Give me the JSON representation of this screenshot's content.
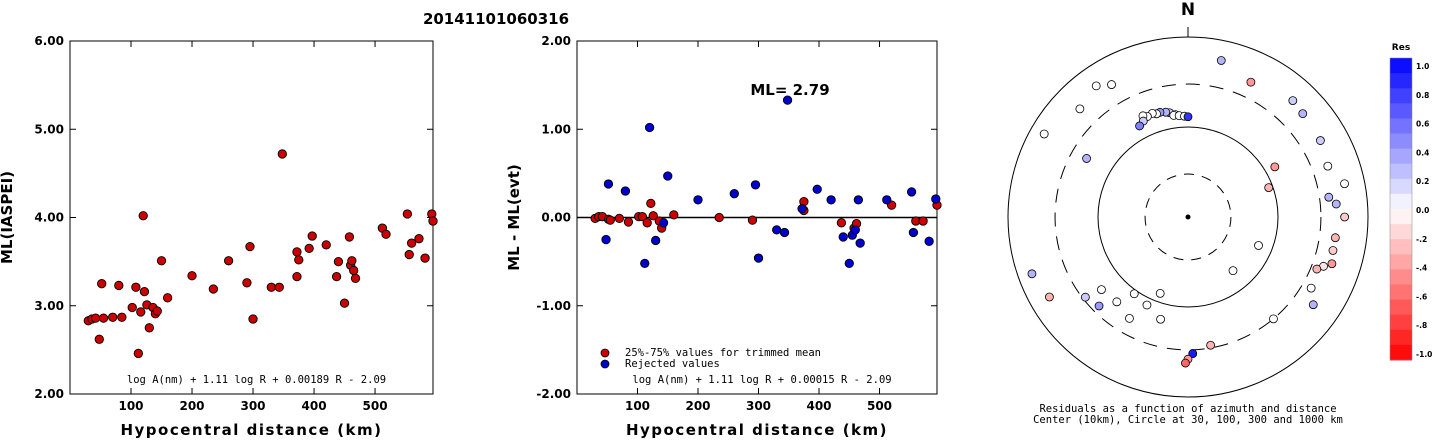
{
  "event_id": "20141101060316",
  "chart_data": [
    {
      "type": "scatter",
      "xlabel": "Hypocentral distance (km)",
      "ylabel": "ML(IASPEI)",
      "xlim": [
        0,
        595
      ],
      "ylim": [
        2.0,
        6.0
      ],
      "xticks": [
        100,
        200,
        300,
        400,
        500
      ],
      "yticks": [
        2.0,
        3.0,
        4.0,
        5.0,
        6.0
      ],
      "ytick_labels": [
        "2.00",
        "3.00",
        "4.00",
        "5.00",
        "6.00"
      ],
      "annotation": "log A(nm) + 1.11 log R + 0.00189 R - 2.09",
      "point_color": "#cc0000",
      "points": [
        [
          30,
          2.83
        ],
        [
          36,
          2.85
        ],
        [
          42,
          2.86
        ],
        [
          48,
          2.62
        ],
        [
          52,
          3.25
        ],
        [
          55,
          2.86
        ],
        [
          70,
          2.87
        ],
        [
          80,
          3.23
        ],
        [
          85,
          2.87
        ],
        [
          102,
          2.98
        ],
        [
          108,
          3.21
        ],
        [
          112,
          2.46
        ],
        [
          116,
          2.93
        ],
        [
          120,
          4.02
        ],
        [
          122,
          3.16
        ],
        [
          126,
          3.01
        ],
        [
          130,
          2.75
        ],
        [
          136,
          2.98
        ],
        [
          140,
          2.91
        ],
        [
          143,
          2.94
        ],
        [
          150,
          3.51
        ],
        [
          160,
          3.09
        ],
        [
          200,
          3.34
        ],
        [
          235,
          3.19
        ],
        [
          260,
          3.51
        ],
        [
          290,
          3.26
        ],
        [
          295,
          3.67
        ],
        [
          300,
          2.85
        ],
        [
          330,
          3.21
        ],
        [
          343,
          3.21
        ],
        [
          348,
          4.72
        ],
        [
          372,
          3.33
        ],
        [
          372,
          3.61
        ],
        [
          375,
          3.52
        ],
        [
          392,
          3.65
        ],
        [
          397,
          3.79
        ],
        [
          420,
          3.69
        ],
        [
          437,
          3.33
        ],
        [
          440,
          3.5
        ],
        [
          450,
          3.03
        ],
        [
          458,
          3.78
        ],
        [
          460,
          3.46
        ],
        [
          462,
          3.51
        ],
        [
          465,
          3.4
        ],
        [
          468,
          3.31
        ],
        [
          512,
          3.88
        ],
        [
          518,
          3.81
        ],
        [
          553,
          4.04
        ],
        [
          556,
          3.58
        ],
        [
          560,
          3.71
        ],
        [
          572,
          3.76
        ],
        [
          582,
          3.54
        ],
        [
          593,
          4.04
        ],
        [
          595,
          3.96
        ]
      ]
    },
    {
      "type": "scatter",
      "xlabel": "Hypocentral distance (km)",
      "ylabel": "ML - ML(evt)",
      "xlim": [
        0,
        595
      ],
      "ylim": [
        -2.0,
        2.0
      ],
      "xticks": [
        100,
        200,
        300,
        400,
        500
      ],
      "yticks": [
        -2.0,
        -1.0,
        0.0,
        1.0,
        2.0
      ],
      "ytick_labels": [
        "-2.00",
        "-1.00",
        "0.00",
        "1.00",
        "2.00"
      ],
      "ml_label": "ML= 2.79",
      "annotation": "log A(nm) + 1.11 log R + 0.00015 R - 2.09",
      "legend": [
        {
          "label": "25%-75% values for trimmed mean",
          "color": "#cc0000"
        },
        {
          "label": "Rejected values",
          "color": "#0000cc"
        }
      ],
      "series": [
        {
          "color": "#cc0000",
          "points": [
            [
              30,
              -0.01
            ],
            [
              36,
              0.01
            ],
            [
              42,
              0.01
            ],
            [
              52,
              -0.02
            ],
            [
              55,
              -0.03
            ],
            [
              70,
              -0.01
            ],
            [
              85,
              -0.05
            ],
            [
              102,
              0.01
            ],
            [
              108,
              0.01
            ],
            [
              116,
              -0.06
            ],
            [
              122,
              0.16
            ],
            [
              126,
              0.02
            ],
            [
              136,
              -0.04
            ],
            [
              140,
              -0.12
            ],
            [
              160,
              0.03
            ],
            [
              235,
              0.0
            ],
            [
              290,
              -0.03
            ],
            [
              375,
              0.18
            ],
            [
              375,
              0.08
            ],
            [
              437,
              -0.06
            ],
            [
              458,
              -0.12
            ],
            [
              462,
              -0.07
            ],
            [
              520,
              0.14
            ],
            [
              560,
              -0.04
            ],
            [
              572,
              -0.04
            ],
            [
              595,
              0.14
            ]
          ]
        },
        {
          "color": "#0000cc",
          "points": [
            [
              48,
              -0.25
            ],
            [
              52,
              0.38
            ],
            [
              80,
              0.3
            ],
            [
              112,
              -0.52
            ],
            [
              120,
              1.02
            ],
            [
              130,
              -0.26
            ],
            [
              143,
              -0.06
            ],
            [
              150,
              0.47
            ],
            [
              200,
              0.2
            ],
            [
              260,
              0.27
            ],
            [
              295,
              0.37
            ],
            [
              300,
              -0.46
            ],
            [
              330,
              -0.14
            ],
            [
              343,
              -0.17
            ],
            [
              348,
              1.33
            ],
            [
              372,
              0.1
            ],
            [
              397,
              0.32
            ],
            [
              420,
              0.2
            ],
            [
              440,
              -0.22
            ],
            [
              450,
              -0.52
            ],
            [
              455,
              -0.2
            ],
            [
              460,
              -0.14
            ],
            [
              465,
              0.2
            ],
            [
              468,
              -0.29
            ],
            [
              512,
              0.2
            ],
            [
              553,
              0.29
            ],
            [
              556,
              -0.17
            ],
            [
              582,
              -0.27
            ],
            [
              593,
              0.21
            ]
          ]
        }
      ]
    },
    {
      "type": "polar-scatter",
      "north_label": "N",
      "caption_line1": "Residuals as a function of azimuth and distance",
      "caption_line2": "Center (10km), Circle at 30, 100, 300 and 1000 km",
      "ring_distances_km": [
        30,
        100,
        300,
        1000
      ],
      "colorbar": {
        "title": "Res",
        "range": [
          -1.0,
          1.0
        ],
        "tick_labels": [
          "1.0",
          "0.8",
          "0.6",
          "0.4",
          "0.2",
          "0.0",
          "-.2",
          "-.4",
          "-.6",
          "-.8",
          "-1.0"
        ],
        "positive_color": "#0000ff",
        "negative_color": "#ff0000"
      },
      "points": [
        {
          "az": 353,
          "dist": 140,
          "res": 0.0
        },
        {
          "az": 350,
          "dist": 150,
          "res": 0.2
        },
        {
          "az": 348,
          "dist": 155,
          "res": 0.3
        },
        {
          "az": 345,
          "dist": 160,
          "res": 0.4
        },
        {
          "az": 343,
          "dist": 158,
          "res": 0.0
        },
        {
          "az": 341,
          "dist": 165,
          "res": 0.0
        },
        {
          "az": 338,
          "dist": 160,
          "res": 0.0
        },
        {
          "az": 336,
          "dist": 170,
          "res": 0.0
        },
        {
          "az": 335,
          "dist": 150,
          "res": 0.2
        },
        {
          "az": 352,
          "dist": 138,
          "res": 0.0
        },
        {
          "az": 355,
          "dist": 135,
          "res": 0.0
        },
        {
          "az": 358,
          "dist": 132,
          "res": 0.0
        },
        {
          "az": 0,
          "dist": 130,
          "res": 0.8
        },
        {
          "az": 332,
          "dist": 140,
          "res": 0.5
        },
        {
          "az": 12,
          "dist": 600,
          "res": 0.3
        },
        {
          "az": 25,
          "dist": 450,
          "res": -0.4
        },
        {
          "az": 42,
          "dist": 550,
          "res": 0.2
        },
        {
          "az": 48,
          "dist": 520,
          "res": 0.3
        },
        {
          "az": 60,
          "dist": 500,
          "res": 0.2
        },
        {
          "az": 70,
          "dist": 450,
          "res": 0.0
        },
        {
          "az": 78,
          "dist": 600,
          "res": 0.0
        },
        {
          "az": 82,
          "dist": 380,
          "res": 0.3
        },
        {
          "az": 85,
          "dist": 450,
          "res": 0.3
        },
        {
          "az": 90,
          "dist": 550,
          "res": -0.2
        },
        {
          "az": 98,
          "dist": 450,
          "res": -0.3
        },
        {
          "az": 103,
          "dist": 450,
          "res": -0.2
        },
        {
          "az": 108,
          "dist": 480,
          "res": -0.4
        },
        {
          "az": 110,
          "dist": 400,
          "res": -0.1
        },
        {
          "az": 112,
          "dist": 350,
          "res": -0.3
        },
        {
          "az": 120,
          "dist": 380,
          "res": 0.0
        },
        {
          "az": 125,
          "dist": 500,
          "res": 0.3
        },
        {
          "az": 140,
          "dist": 300,
          "res": 0.0
        },
        {
          "az": 170,
          "dist": 280,
          "res": -0.3
        },
        {
          "az": 178,
          "dist": 330,
          "res": 0.9
        },
        {
          "az": 180,
          "dist": 380,
          "res": -0.4
        },
        {
          "az": 181,
          "dist": 420,
          "res": -0.6
        },
        {
          "az": 200,
          "dist": 80,
          "res": 0.0
        },
        {
          "az": 205,
          "dist": 120,
          "res": 0.0
        },
        {
          "az": 195,
          "dist": 150,
          "res": 0.0
        },
        {
          "az": 215,
          "dist": 110,
          "res": 0.0
        },
        {
          "az": 220,
          "dist": 170,
          "res": 0.0
        },
        {
          "az": 210,
          "dist": 200,
          "res": 0.0
        },
        {
          "az": 230,
          "dist": 180,
          "res": 0.0
        },
        {
          "az": 225,
          "dist": 250,
          "res": 0.4
        },
        {
          "az": 232,
          "dist": 280,
          "res": 0.2
        },
        {
          "az": 240,
          "dist": 600,
          "res": -0.3
        },
        {
          "az": 250,
          "dist": 700,
          "res": 0.3
        },
        {
          "az": 140,
          "dist": 60,
          "res": 0.0
        },
        {
          "az": 112,
          "dist": 70,
          "res": 0.0
        },
        {
          "az": 60,
          "dist": 130,
          "res": -0.4
        },
        {
          "az": 70,
          "dist": 90,
          "res": -0.3
        },
        {
          "az": 300,
          "dist": 700,
          "res": 0.0
        },
        {
          "az": 315,
          "dist": 500,
          "res": 0.0
        },
        {
          "az": 325,
          "dist": 600,
          "res": 0.0
        },
        {
          "az": 330,
          "dist": 500,
          "res": 0.0
        },
        {
          "az": 300,
          "dist": 200,
          "res": 0.3
        }
      ]
    }
  ]
}
